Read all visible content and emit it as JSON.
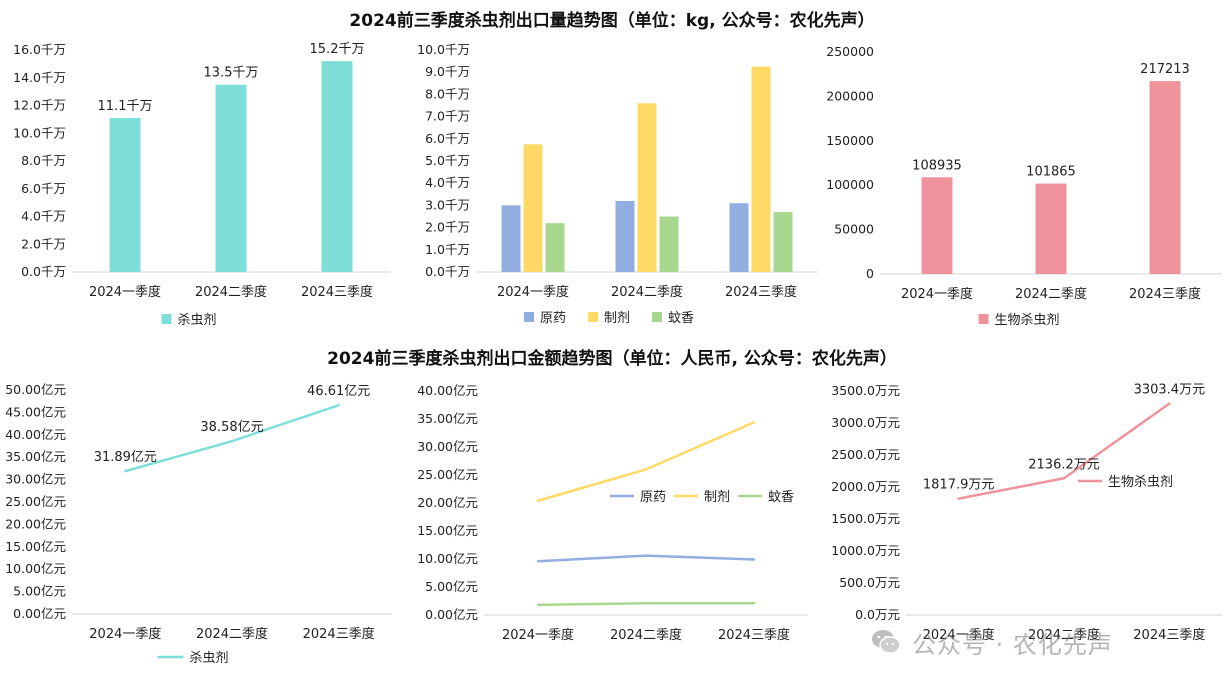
{
  "titles": {
    "top": "2024前三季度杀虫剂出口量趋势图（单位：kg, 公众号：农化先声）",
    "bottom": "2024前三季度杀虫剂出口金额趋势图（单位：人民币, 公众号：农化先声）"
  },
  "watermark": {
    "text": "公众号 · 农化先声",
    "icon": "wechat-icon"
  },
  "chart_data": [
    {
      "type": "bar",
      "categories": [
        "2024一季度",
        "2024二季度",
        "2024三季度"
      ],
      "series": [
        {
          "name": "杀虫剂",
          "values": [
            11.1,
            13.5,
            15.2
          ],
          "color": "#7EDFD9",
          "labels": [
            "11.1千万",
            "13.5千万",
            "15.2千万"
          ]
        }
      ],
      "ylim": [
        0,
        16
      ],
      "yticks": [
        "0.0千万",
        "2.0千万",
        "4.0千万",
        "6.0千万",
        "8.0千万",
        "10.0千万",
        "12.0千万",
        "14.0千万",
        "16.0千万"
      ],
      "legend": "bottom"
    },
    {
      "type": "bar",
      "categories": [
        "2024一季度",
        "2024二季度",
        "2024三季度"
      ],
      "series": [
        {
          "name": "原药",
          "values": [
            3.0,
            3.2,
            3.1
          ],
          "color": "#92AEE0"
        },
        {
          "name": "制剂",
          "values": [
            5.75,
            7.6,
            9.25
          ],
          "color": "#FFD965"
        },
        {
          "name": "蚊香",
          "values": [
            2.2,
            2.5,
            2.7
          ],
          "color": "#A8D88F"
        }
      ],
      "ylim": [
        0,
        10
      ],
      "yticks": [
        "0.0千万",
        "1.0千万",
        "2.0千万",
        "3.0千万",
        "4.0千万",
        "5.0千万",
        "6.0千万",
        "7.0千万",
        "8.0千万",
        "9.0千万",
        "10.0千万"
      ],
      "legend": "bottom"
    },
    {
      "type": "bar",
      "categories": [
        "2024一季度",
        "2024二季度",
        "2024三季度"
      ],
      "series": [
        {
          "name": "生物杀虫剂",
          "values": [
            108935,
            101865,
            217213
          ],
          "color": "#EE939C",
          "labels": [
            "108935",
            "101865",
            "217213"
          ]
        }
      ],
      "ylim": [
        0,
        250000
      ],
      "yticks": [
        "0",
        "50000",
        "100000",
        "150000",
        "200000",
        "250000"
      ],
      "legend": "bottom"
    },
    {
      "type": "line",
      "categories": [
        "2024一季度",
        "2024二季度",
        "2024三季度"
      ],
      "series": [
        {
          "name": "杀虫剂",
          "values": [
            31.89,
            38.58,
            46.61
          ],
          "color": "#7EDFD9",
          "labels": [
            "31.89亿元",
            "38.58亿元",
            "46.61亿元"
          ]
        }
      ],
      "ylim": [
        0,
        50
      ],
      "yticks": [
        "0.00亿元",
        "5.00亿元",
        "10.00亿元",
        "15.00亿元",
        "20.00亿元",
        "25.00亿元",
        "30.00亿元",
        "35.00亿元",
        "40.00亿元",
        "45.00亿元",
        "50.00亿元"
      ],
      "legend": "bottom"
    },
    {
      "type": "line",
      "categories": [
        "2024一季度",
        "2024二季度",
        "2024三季度"
      ],
      "series": [
        {
          "name": "原药",
          "values": [
            9.6,
            10.6,
            9.9
          ],
          "color": "#92AEE0"
        },
        {
          "name": "制剂",
          "values": [
            20.4,
            26.0,
            34.4
          ],
          "color": "#FFD965"
        },
        {
          "name": "蚊香",
          "values": [
            1.8,
            2.1,
            2.1
          ],
          "color": "#A8D88F"
        }
      ],
      "ylim": [
        0,
        40
      ],
      "yticks": [
        "0.00亿元",
        "5.00亿元",
        "10.00亿元",
        "15.00亿元",
        "20.00亿元",
        "25.00亿元",
        "30.00亿元",
        "35.00亿元",
        "40.00亿元"
      ],
      "legend": "right"
    },
    {
      "type": "line",
      "categories": [
        "2024一季度",
        "2024二季度",
        "2024三季度"
      ],
      "series": [
        {
          "name": "生物杀虫剂",
          "values": [
            1817.9,
            2136.2,
            3303.4
          ],
          "color": "#EE939C",
          "labels": [
            "1817.9万元",
            "2136.2万元",
            "3303.4万元"
          ]
        }
      ],
      "ylim": [
        0,
        3500
      ],
      "yticks": [
        "0.0万元",
        "500.0万元",
        "1000.0万元",
        "1500.0万元",
        "2000.0万元",
        "2500.0万元",
        "3000.0万元",
        "3500.0万元"
      ],
      "legend": "right"
    }
  ]
}
